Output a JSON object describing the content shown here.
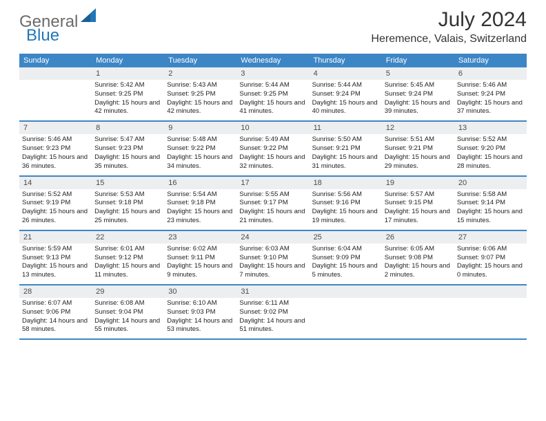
{
  "brand": {
    "gray": "General",
    "blue": "Blue"
  },
  "title": "July 2024",
  "location": "Heremence, Valais, Switzerland",
  "colors": {
    "header_bg": "#3d86c6",
    "header_text": "#ffffff",
    "daynum_bg": "#eceeef",
    "daynum_text": "#4a4a4a",
    "body_text": "#222222",
    "brand_gray": "#6b6b6b",
    "brand_blue": "#2176b8",
    "page_bg": "#ffffff"
  },
  "typography": {
    "title_fontsize": 30,
    "location_fontsize": 16,
    "dayheader_fontsize": 11,
    "daynum_fontsize": 11,
    "cell_fontsize": 9.5
  },
  "day_names": [
    "Sunday",
    "Monday",
    "Tuesday",
    "Wednesday",
    "Thursday",
    "Friday",
    "Saturday"
  ],
  "weeks": [
    [
      {
        "n": "",
        "sunrise": "",
        "sunset": "",
        "daylight": ""
      },
      {
        "n": "1",
        "sunrise": "Sunrise: 5:42 AM",
        "sunset": "Sunset: 9:25 PM",
        "daylight": "Daylight: 15 hours and 42 minutes."
      },
      {
        "n": "2",
        "sunrise": "Sunrise: 5:43 AM",
        "sunset": "Sunset: 9:25 PM",
        "daylight": "Daylight: 15 hours and 42 minutes."
      },
      {
        "n": "3",
        "sunrise": "Sunrise: 5:44 AM",
        "sunset": "Sunset: 9:25 PM",
        "daylight": "Daylight: 15 hours and 41 minutes."
      },
      {
        "n": "4",
        "sunrise": "Sunrise: 5:44 AM",
        "sunset": "Sunset: 9:24 PM",
        "daylight": "Daylight: 15 hours and 40 minutes."
      },
      {
        "n": "5",
        "sunrise": "Sunrise: 5:45 AM",
        "sunset": "Sunset: 9:24 PM",
        "daylight": "Daylight: 15 hours and 39 minutes."
      },
      {
        "n": "6",
        "sunrise": "Sunrise: 5:46 AM",
        "sunset": "Sunset: 9:24 PM",
        "daylight": "Daylight: 15 hours and 37 minutes."
      }
    ],
    [
      {
        "n": "7",
        "sunrise": "Sunrise: 5:46 AM",
        "sunset": "Sunset: 9:23 PM",
        "daylight": "Daylight: 15 hours and 36 minutes."
      },
      {
        "n": "8",
        "sunrise": "Sunrise: 5:47 AM",
        "sunset": "Sunset: 9:23 PM",
        "daylight": "Daylight: 15 hours and 35 minutes."
      },
      {
        "n": "9",
        "sunrise": "Sunrise: 5:48 AM",
        "sunset": "Sunset: 9:22 PM",
        "daylight": "Daylight: 15 hours and 34 minutes."
      },
      {
        "n": "10",
        "sunrise": "Sunrise: 5:49 AM",
        "sunset": "Sunset: 9:22 PM",
        "daylight": "Daylight: 15 hours and 32 minutes."
      },
      {
        "n": "11",
        "sunrise": "Sunrise: 5:50 AM",
        "sunset": "Sunset: 9:21 PM",
        "daylight": "Daylight: 15 hours and 31 minutes."
      },
      {
        "n": "12",
        "sunrise": "Sunrise: 5:51 AM",
        "sunset": "Sunset: 9:21 PM",
        "daylight": "Daylight: 15 hours and 29 minutes."
      },
      {
        "n": "13",
        "sunrise": "Sunrise: 5:52 AM",
        "sunset": "Sunset: 9:20 PM",
        "daylight": "Daylight: 15 hours and 28 minutes."
      }
    ],
    [
      {
        "n": "14",
        "sunrise": "Sunrise: 5:52 AM",
        "sunset": "Sunset: 9:19 PM",
        "daylight": "Daylight: 15 hours and 26 minutes."
      },
      {
        "n": "15",
        "sunrise": "Sunrise: 5:53 AM",
        "sunset": "Sunset: 9:18 PM",
        "daylight": "Daylight: 15 hours and 25 minutes."
      },
      {
        "n": "16",
        "sunrise": "Sunrise: 5:54 AM",
        "sunset": "Sunset: 9:18 PM",
        "daylight": "Daylight: 15 hours and 23 minutes."
      },
      {
        "n": "17",
        "sunrise": "Sunrise: 5:55 AM",
        "sunset": "Sunset: 9:17 PM",
        "daylight": "Daylight: 15 hours and 21 minutes."
      },
      {
        "n": "18",
        "sunrise": "Sunrise: 5:56 AM",
        "sunset": "Sunset: 9:16 PM",
        "daylight": "Daylight: 15 hours and 19 minutes."
      },
      {
        "n": "19",
        "sunrise": "Sunrise: 5:57 AM",
        "sunset": "Sunset: 9:15 PM",
        "daylight": "Daylight: 15 hours and 17 minutes."
      },
      {
        "n": "20",
        "sunrise": "Sunrise: 5:58 AM",
        "sunset": "Sunset: 9:14 PM",
        "daylight": "Daylight: 15 hours and 15 minutes."
      }
    ],
    [
      {
        "n": "21",
        "sunrise": "Sunrise: 5:59 AM",
        "sunset": "Sunset: 9:13 PM",
        "daylight": "Daylight: 15 hours and 13 minutes."
      },
      {
        "n": "22",
        "sunrise": "Sunrise: 6:01 AM",
        "sunset": "Sunset: 9:12 PM",
        "daylight": "Daylight: 15 hours and 11 minutes."
      },
      {
        "n": "23",
        "sunrise": "Sunrise: 6:02 AM",
        "sunset": "Sunset: 9:11 PM",
        "daylight": "Daylight: 15 hours and 9 minutes."
      },
      {
        "n": "24",
        "sunrise": "Sunrise: 6:03 AM",
        "sunset": "Sunset: 9:10 PM",
        "daylight": "Daylight: 15 hours and 7 minutes."
      },
      {
        "n": "25",
        "sunrise": "Sunrise: 6:04 AM",
        "sunset": "Sunset: 9:09 PM",
        "daylight": "Daylight: 15 hours and 5 minutes."
      },
      {
        "n": "26",
        "sunrise": "Sunrise: 6:05 AM",
        "sunset": "Sunset: 9:08 PM",
        "daylight": "Daylight: 15 hours and 2 minutes."
      },
      {
        "n": "27",
        "sunrise": "Sunrise: 6:06 AM",
        "sunset": "Sunset: 9:07 PM",
        "daylight": "Daylight: 15 hours and 0 minutes."
      }
    ],
    [
      {
        "n": "28",
        "sunrise": "Sunrise: 6:07 AM",
        "sunset": "Sunset: 9:06 PM",
        "daylight": "Daylight: 14 hours and 58 minutes."
      },
      {
        "n": "29",
        "sunrise": "Sunrise: 6:08 AM",
        "sunset": "Sunset: 9:04 PM",
        "daylight": "Daylight: 14 hours and 55 minutes."
      },
      {
        "n": "30",
        "sunrise": "Sunrise: 6:10 AM",
        "sunset": "Sunset: 9:03 PM",
        "daylight": "Daylight: 14 hours and 53 minutes."
      },
      {
        "n": "31",
        "sunrise": "Sunrise: 6:11 AM",
        "sunset": "Sunset: 9:02 PM",
        "daylight": "Daylight: 14 hours and 51 minutes."
      },
      {
        "n": "",
        "sunrise": "",
        "sunset": "",
        "daylight": ""
      },
      {
        "n": "",
        "sunrise": "",
        "sunset": "",
        "daylight": ""
      },
      {
        "n": "",
        "sunrise": "",
        "sunset": "",
        "daylight": ""
      }
    ]
  ]
}
